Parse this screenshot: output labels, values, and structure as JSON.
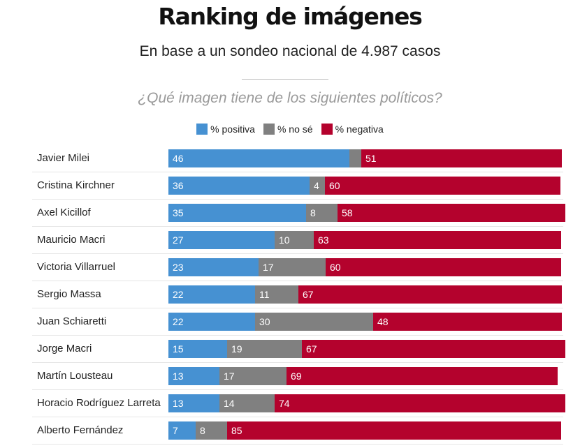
{
  "title": "Ranking de imágenes",
  "subtitle": "En base a un sondeo nacional de 4.987 casos",
  "question": "¿Qué imagen tiene de los siguientes políticos?",
  "colors": {
    "positiva": "#4691d2",
    "nose": "#808080",
    "negativa": "#b4022d"
  },
  "legend": [
    {
      "label": "% positiva",
      "color": "#4691d2"
    },
    {
      "label": "% no sé",
      "color": "#808080"
    },
    {
      "label": "% negativa",
      "color": "#b4022d"
    }
  ],
  "chart_data": {
    "type": "bar",
    "orientation": "horizontal",
    "stacked": true,
    "grid": false,
    "legend_position": "top",
    "xlim": [
      0,
      100
    ],
    "categories": [
      "Javier Milei",
      "Cristina Kirchner",
      "Axel Kicillof",
      "Mauricio Macri",
      "Victoria Villarruel",
      "Sergio Massa",
      "Juan Schiaretti",
      "Jorge Macri",
      "Martín Lousteau",
      "Horacio Rodríguez Larreta",
      "Alberto Fernández"
    ],
    "series": [
      {
        "name": "% positiva",
        "values": [
          46,
          36,
          35,
          27,
          23,
          22,
          22,
          15,
          13,
          13,
          7
        ]
      },
      {
        "name": "% no sé",
        "values": [
          3,
          4,
          8,
          10,
          17,
          11,
          30,
          19,
          17,
          14,
          8
        ]
      },
      {
        "name": "% negativa",
        "values": [
          51,
          60,
          58,
          63,
          60,
          67,
          48,
          67,
          69,
          74,
          85
        ]
      }
    ],
    "value_labels": [
      [
        "46",
        "",
        "51"
      ],
      [
        "36",
        "4",
        "60"
      ],
      [
        "35",
        "8",
        "58"
      ],
      [
        "27",
        "10",
        "63"
      ],
      [
        "23",
        "17",
        "60"
      ],
      [
        "22",
        "11",
        "67"
      ],
      [
        "22",
        "30",
        "48"
      ],
      [
        "15",
        "19",
        "67"
      ],
      [
        "13",
        "17",
        "69"
      ],
      [
        "13",
        "14",
        "74"
      ],
      [
        "7",
        "8",
        "85"
      ]
    ]
  }
}
